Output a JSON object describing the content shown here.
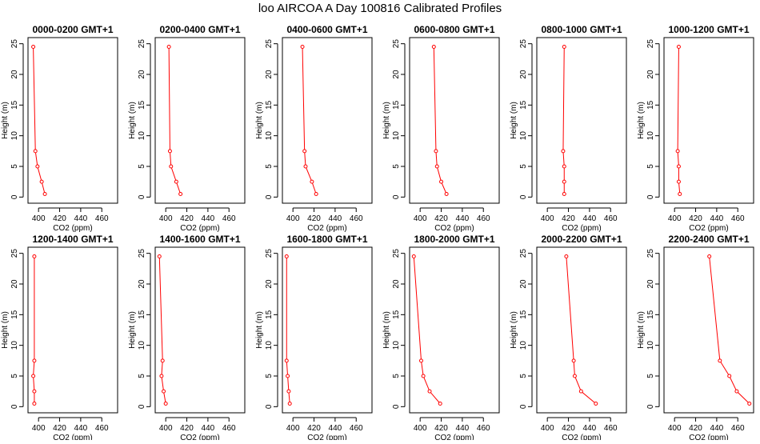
{
  "title": "loo AIRCOA A  Day 100816  Calibrated Profiles",
  "colors": {
    "line": "#ff0000",
    "axis": "#000000",
    "background": "#ffffff"
  },
  "chart_data": {
    "type": "line",
    "shared": {
      "xlabel": "CO2 (ppm)",
      "ylabel": "Height (m)",
      "xticks": [
        400,
        420,
        440,
        460
      ],
      "yticks": [
        0,
        5,
        10,
        15,
        20,
        25
      ],
      "xlim": [
        390,
        475
      ],
      "ylim": [
        -1,
        26
      ],
      "grid": false,
      "heights": [
        0.5,
        2.5,
        5,
        7.5,
        24.5
      ]
    },
    "panels": [
      {
        "title": "0000-0200 GMT+1",
        "x": [
          406,
          403,
          399,
          397,
          395
        ]
      },
      {
        "title": "0200-0400 GMT+1",
        "x": [
          414,
          410,
          405,
          404,
          403
        ]
      },
      {
        "title": "0400-0600 GMT+1",
        "x": [
          422,
          418,
          412,
          411,
          409
        ]
      },
      {
        "title": "0600-0800 GMT+1",
        "x": [
          425,
          420,
          416,
          415,
          413
        ]
      },
      {
        "title": "0800-1000 GMT+1",
        "x": [
          416,
          416,
          416,
          415,
          416
        ]
      },
      {
        "title": "1000-1200 GMT+1",
        "x": [
          405,
          404,
          404,
          403,
          404
        ]
      },
      {
        "title": "1200-1400 GMT+1",
        "x": [
          396,
          396,
          395,
          396,
          396
        ]
      },
      {
        "title": "1400-1600 GMT+1",
        "x": [
          400,
          398,
          396,
          397,
          394
        ]
      },
      {
        "title": "1600-1800 GMT+1",
        "x": [
          397,
          396,
          395,
          394,
          394
        ]
      },
      {
        "title": "1800-2000 GMT+1",
        "x": [
          419,
          409,
          403,
          401,
          394
        ]
      },
      {
        "title": "2000-2200 GMT+1",
        "x": [
          446,
          432,
          426,
          425,
          418
        ]
      },
      {
        "title": "2200-2400 GMT+1",
        "x": [
          471,
          459,
          452,
          443,
          433
        ]
      }
    ]
  }
}
